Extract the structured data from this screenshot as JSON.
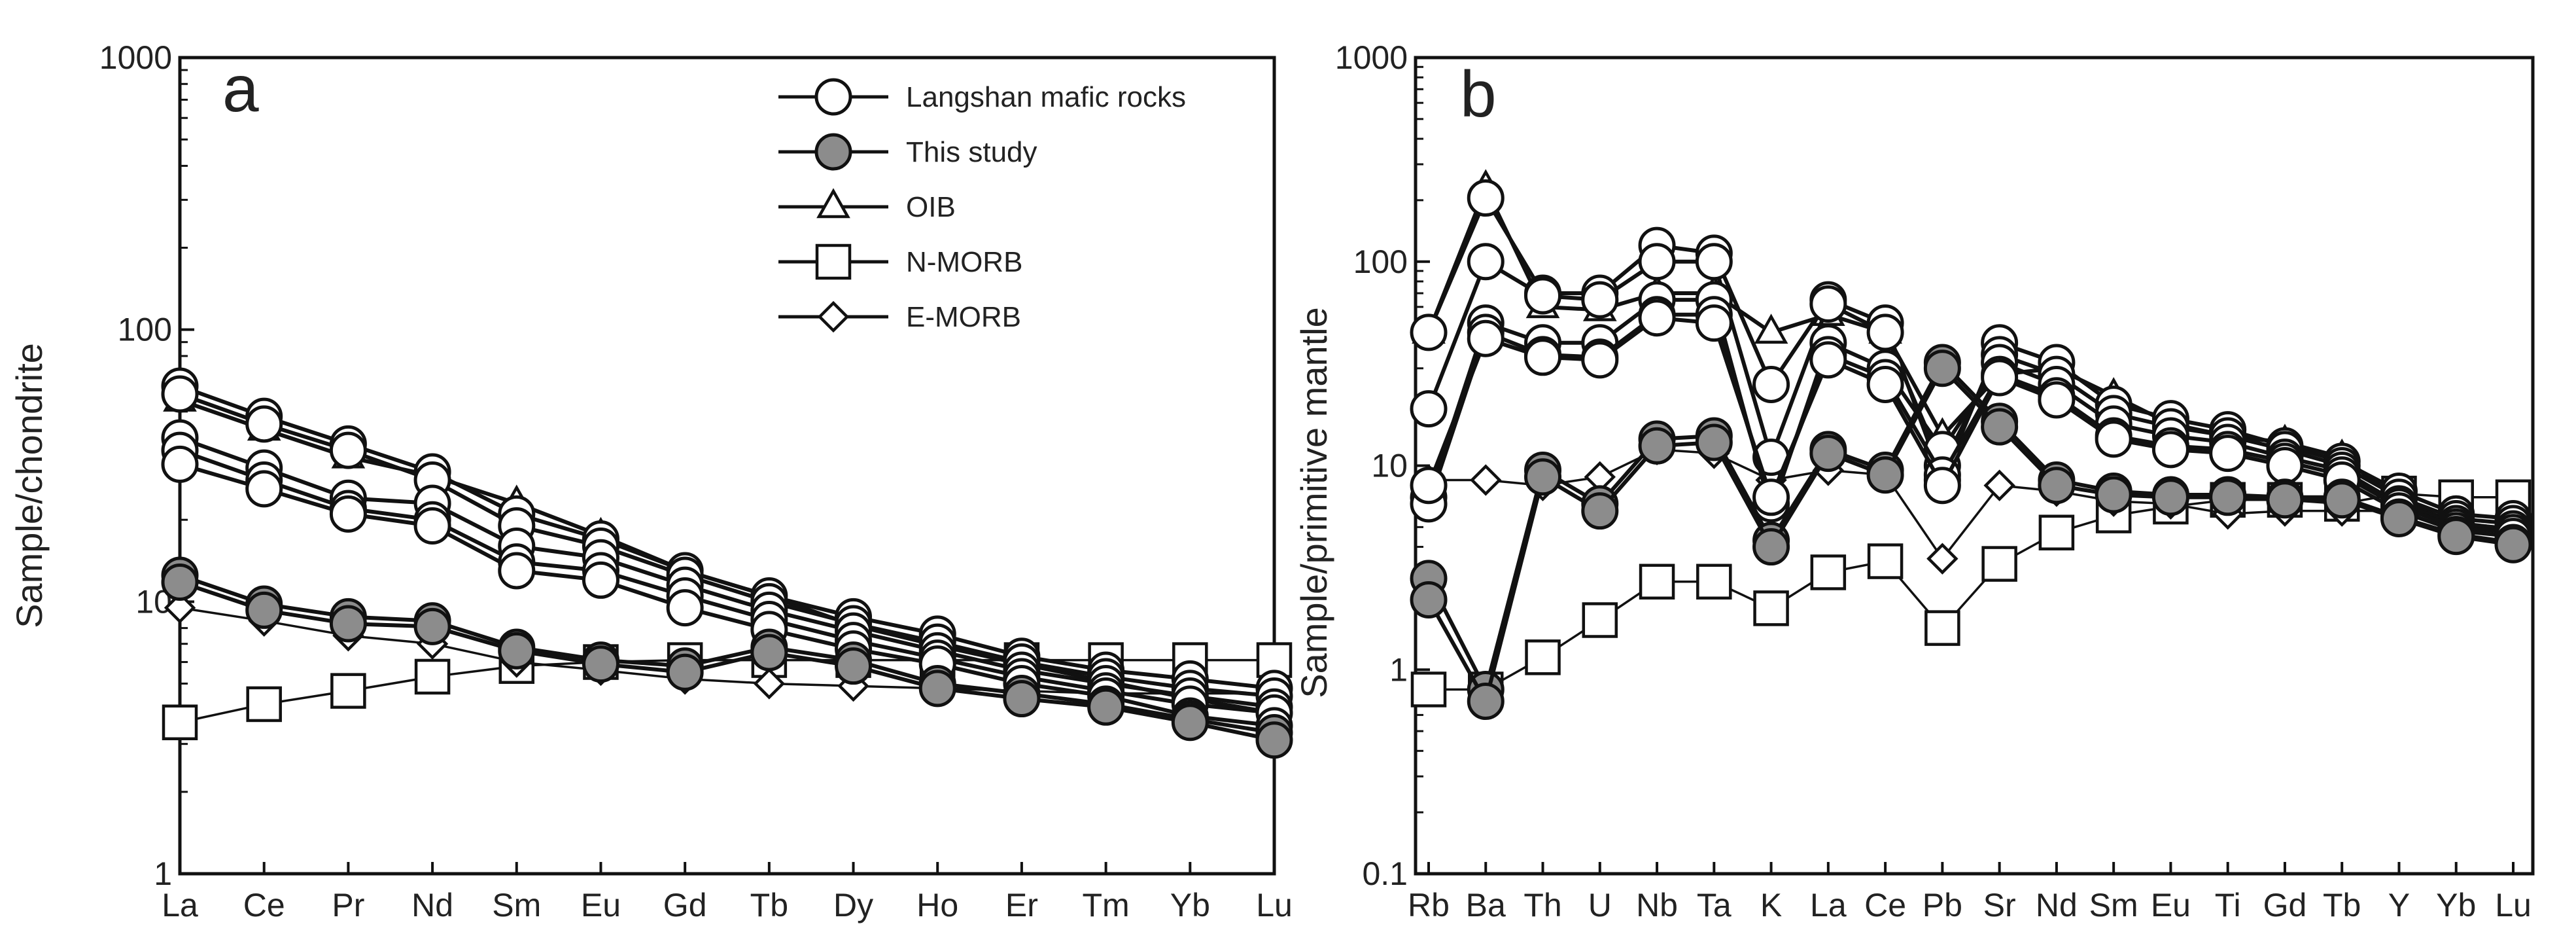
{
  "figure": {
    "panels": [
      "a",
      "b"
    ],
    "legend": [
      {
        "label": "Langshan mafic rocks",
        "marker": "circle-open"
      },
      {
        "label": "This study",
        "marker": "circle-filled"
      },
      {
        "label": "OIB",
        "marker": "triangle-open"
      },
      {
        "label": "N-MORB",
        "marker": "square-open"
      },
      {
        "label": "E-MORB",
        "marker": "diamond-open"
      }
    ]
  },
  "chart_data": [
    {
      "type": "line",
      "panel_label": "a",
      "ylabel": "Sample/chondrite",
      "xlabel": "",
      "yscale": "log",
      "ylim": [
        1,
        1000
      ],
      "yticks": [
        "1",
        "10",
        "100",
        "1000"
      ],
      "legend_position": "top-right",
      "categories": [
        "La",
        "Ce",
        "Pr",
        "Nd",
        "Sm",
        "Eu",
        "Gd",
        "Tb",
        "Dy",
        "Ho",
        "Er",
        "Tm",
        "Yb",
        "Lu"
      ],
      "series": [
        {
          "name": "Langshan mafic rocks",
          "marker": "circle-open",
          "values": [
            62,
            48,
            38,
            30,
            21,
            17,
            13,
            10.5,
            8.8,
            7.6,
            6.3,
            5.6,
            5.2,
            4.8
          ]
        },
        {
          "name": "Langshan mafic rocks",
          "marker": "circle-open",
          "values": [
            58,
            45,
            36,
            28,
            19,
            16,
            12.5,
            10,
            8.3,
            7.1,
            6.0,
            5.3,
            4.8,
            4.5
          ]
        },
        {
          "name": "Langshan mafic rocks",
          "marker": "circle-open",
          "values": [
            40,
            31,
            24,
            23,
            16,
            14.5,
            11.5,
            9.3,
            7.8,
            6.6,
            5.6,
            5.0,
            4.5,
            4.1
          ]
        },
        {
          "name": "Langshan mafic rocks",
          "marker": "circle-open",
          "values": [
            36,
            28,
            22,
            20,
            14,
            13,
            10.5,
            8.6,
            7.2,
            6.2,
            5.3,
            4.7,
            4.2,
            3.9
          ]
        },
        {
          "name": "Langshan mafic rocks",
          "marker": "circle-open",
          "values": [
            32,
            26,
            21,
            19,
            13,
            12,
            9.5,
            7.9,
            6.7,
            5.9,
            5.0,
            4.5,
            3.8,
            3.5
          ]
        },
        {
          "name": "This study",
          "marker": "circle-filled",
          "values": [
            12.5,
            9.8,
            8.8,
            8.5,
            6.8,
            6.1,
            5.8,
            6.8,
            6.1,
            5.0,
            4.6,
            4.2,
            3.7,
            3.3
          ]
        },
        {
          "name": "This study",
          "marker": "circle-filled",
          "values": [
            11.8,
            9.3,
            8.3,
            8.1,
            6.6,
            5.9,
            5.5,
            6.5,
            5.8,
            4.8,
            4.4,
            4.1,
            3.6,
            3.1
          ]
        },
        {
          "name": "OIB",
          "marker": "triangle-open",
          "values": [
            55,
            43,
            34,
            29,
            23,
            17.5,
            13,
            10.5,
            8.2,
            6.9,
            5.9,
            5.1,
            4.4,
            3.9
          ]
        },
        {
          "name": "N-MORB",
          "marker": "square-open",
          "values": [
            3.6,
            4.2,
            4.7,
            5.3,
            5.8,
            6.0,
            6.1,
            6.1,
            6.1,
            6.1,
            6.1,
            6.1,
            6.1,
            6.1
          ]
        },
        {
          "name": "E-MORB",
          "marker": "diamond-open",
          "values": [
            9.5,
            8.5,
            7.5,
            7.0,
            6.0,
            5.6,
            5.2,
            5.0,
            4.9,
            4.8,
            4.7,
            4.6,
            4.6,
            4.6
          ]
        }
      ]
    },
    {
      "type": "line",
      "panel_label": "b",
      "ylabel": "Sample/primitive mantle",
      "xlabel": "",
      "yscale": "log",
      "ylim": [
        0.1,
        1000
      ],
      "yticks": [
        "0.1",
        "1",
        "10",
        "100",
        "1000"
      ],
      "categories": [
        "Rb",
        "Ba",
        "Th",
        "U",
        "Nb",
        "Ta",
        "K",
        "La",
        "Ce",
        "Pb",
        "Sr",
        "Nd",
        "Sm",
        "Eu",
        "Ti",
        "Gd",
        "Tb",
        "Y",
        "Yb",
        "Lu"
      ],
      "series": [
        {
          "name": "Langshan mafic rocks",
          "marker": "circle-open",
          "values": [
            45,
            205,
            70,
            70,
            120,
            110,
            25,
            65,
            50,
            8.5,
            40,
            32,
            20,
            17,
            15,
            12.5,
            10.5,
            7.5,
            5.8,
            5.5
          ]
        },
        {
          "name": "Langshan mafic rocks",
          "marker": "circle-open",
          "values": [
            19,
            100,
            68,
            65,
            100,
            100,
            11,
            62,
            45,
            10,
            35,
            28,
            18,
            15.5,
            14,
            12,
            10,
            7,
            5.5,
            5.2
          ]
        },
        {
          "name": "Langshan mafic rocks",
          "marker": "circle-open",
          "values": [
            7,
            50,
            40,
            40,
            65,
            65,
            6,
            40,
            30,
            12,
            32,
            25,
            16,
            14,
            13,
            11,
            9.5,
            6.5,
            5.2,
            4.9
          ]
        },
        {
          "name": "Langshan mafic rocks",
          "marker": "circle-open",
          "values": [
            6.5,
            45,
            35,
            34,
            55,
            55,
            6.5,
            35,
            27,
            9,
            28,
            22,
            14,
            12.5,
            12,
            10.5,
            9,
            6.3,
            5.0,
            4.7
          ]
        },
        {
          "name": "Langshan mafic rocks",
          "marker": "circle-open",
          "values": [
            8,
            42,
            34,
            33,
            53,
            50,
            7,
            33,
            25,
            8,
            27,
            21,
            13.5,
            12,
            11.5,
            10,
            8.5,
            6,
            4.8,
            4.5
          ]
        },
        {
          "name": "This study",
          "marker": "circle-filled",
          "values": [
            2.8,
            0.8,
            9.5,
            6.5,
            13.5,
            14,
            4.3,
            12,
            9.5,
            32,
            16.5,
            8.5,
            7.5,
            7.2,
            7.2,
            7.0,
            7.0,
            5.6,
            4.6,
            4.2
          ]
        },
        {
          "name": "This study",
          "marker": "circle-filled",
          "values": [
            2.2,
            0.7,
            8.8,
            6.0,
            12.5,
            13,
            4.0,
            11.5,
            9.0,
            30,
            15.5,
            8.0,
            7.2,
            7.0,
            7.0,
            6.8,
            6.8,
            5.5,
            4.5,
            4.1
          ]
        },
        {
          "name": "OIB",
          "marker": "triangle-open",
          "values": [
            45,
            230,
            60,
            58,
            70,
            70,
            45,
            55,
            45,
            14,
            28,
            30,
            22,
            16,
            14,
            13,
            11,
            6.8,
            5.2,
            4.7
          ]
        },
        {
          "name": "N-MORB",
          "marker": "square-open",
          "values": [
            0.8,
            0.8,
            1.15,
            1.75,
            2.7,
            2.7,
            2.0,
            3.0,
            3.4,
            1.6,
            3.3,
            4.7,
            5.7,
            6.3,
            6.8,
            6.8,
            6.5,
            7.3,
            7.0,
            7.0
          ]
        },
        {
          "name": "E-MORB",
          "marker": "diamond-open",
          "values": [
            8.5,
            8.5,
            8.0,
            8.8,
            12,
            11.5,
            8.5,
            9.5,
            9,
            3.5,
            8,
            7.5,
            6.7,
            6.5,
            5.8,
            6.0,
            6.0,
            6.0,
            5.3,
            4.9
          ]
        }
      ]
    }
  ]
}
